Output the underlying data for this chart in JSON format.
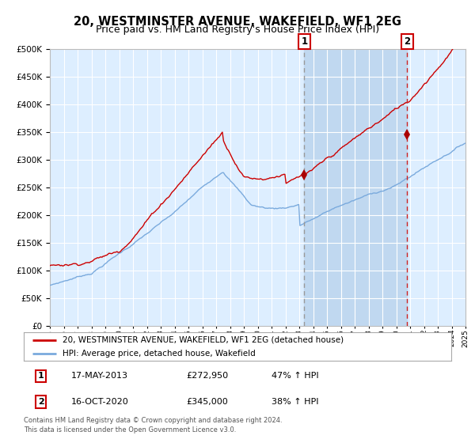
{
  "title": "20, WESTMINSTER AVENUE, WAKEFIELD, WF1 2EG",
  "subtitle": "Price paid vs. HM Land Registry's House Price Index (HPI)",
  "title_fontsize": 10.5,
  "subtitle_fontsize": 9,
  "background_color": "#ffffff",
  "plot_bg_color": "#ddeeff",
  "grid_color": "#ffffff",
  "ylim": [
    0,
    500000
  ],
  "yticks": [
    0,
    50000,
    100000,
    150000,
    200000,
    250000,
    300000,
    350000,
    400000,
    450000,
    500000
  ],
  "year_start": 1995,
  "year_end": 2025,
  "hpi_color": "#7aaadd",
  "price_color": "#cc0000",
  "marker_color": "#aa0000",
  "vline1_color": "#999999",
  "vline2_color": "#cc2222",
  "shade_color": "#c0d8f0",
  "sale1_year": 2013.37,
  "sale1_price": 272950,
  "sale2_year": 2020.79,
  "sale2_price": 345000,
  "sale1_label": "1",
  "sale2_label": "2",
  "legend_line1": "20, WESTMINSTER AVENUE, WAKEFIELD, WF1 2EG (detached house)",
  "legend_line2": "HPI: Average price, detached house, Wakefield",
  "footer_line1": "Contains HM Land Registry data © Crown copyright and database right 2024.",
  "footer_line2": "This data is licensed under the Open Government Licence v3.0.",
  "table_row1": [
    "1",
    "17-MAY-2013",
    "£272,950",
    "47% ↑ HPI"
  ],
  "table_row2": [
    "2",
    "16-OCT-2020",
    "£345,000",
    "38% ↑ HPI"
  ]
}
